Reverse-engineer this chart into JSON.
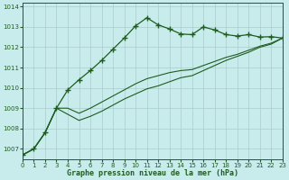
{
  "title": "Graphe pression niveau de la mer (hPa)",
  "bg_color": "#c8ecec",
  "grid_color": "#aacccc",
  "line_color": "#1f5c1f",
  "xlim": [
    0,
    23
  ],
  "ylim": [
    1006.5,
    1014.2
  ],
  "yticks": [
    1007,
    1008,
    1009,
    1010,
    1011,
    1012,
    1013,
    1014
  ],
  "xticks": [
    0,
    1,
    2,
    3,
    4,
    5,
    6,
    7,
    8,
    9,
    10,
    11,
    12,
    13,
    14,
    15,
    16,
    17,
    18,
    19,
    20,
    21,
    22,
    23
  ],
  "hours": [
    0,
    1,
    2,
    3,
    4,
    5,
    6,
    7,
    8,
    9,
    10,
    11,
    12,
    13,
    14,
    15,
    16,
    17,
    18,
    19,
    20,
    21,
    22,
    23
  ],
  "line1": [
    1006.7,
    1007.0,
    1007.8,
    1009.0,
    1009.9,
    1010.4,
    1010.85,
    1011.35,
    1011.9,
    1012.45,
    1013.05,
    1013.45,
    1013.1,
    1012.9,
    1012.65,
    1012.62,
    1013.0,
    1012.85,
    1012.62,
    1012.55,
    1012.62,
    1012.5,
    1012.52,
    1012.45
  ],
  "line2": [
    1006.7,
    1007.0,
    1007.8,
    1009.0,
    1009.0,
    1008.75,
    1009.0,
    1009.3,
    1009.6,
    1009.9,
    1010.2,
    1010.45,
    1010.6,
    1010.75,
    1010.85,
    1010.9,
    1011.1,
    1011.3,
    1011.5,
    1011.65,
    1011.85,
    1012.05,
    1012.2,
    1012.45
  ],
  "line3": [
    1006.7,
    1007.0,
    1007.8,
    1009.0,
    1008.7,
    1008.4,
    1008.6,
    1008.85,
    1009.15,
    1009.45,
    1009.7,
    1009.95,
    1010.1,
    1010.3,
    1010.5,
    1010.6,
    1010.85,
    1011.1,
    1011.35,
    1011.55,
    1011.75,
    1012.0,
    1012.15,
    1012.45
  ]
}
